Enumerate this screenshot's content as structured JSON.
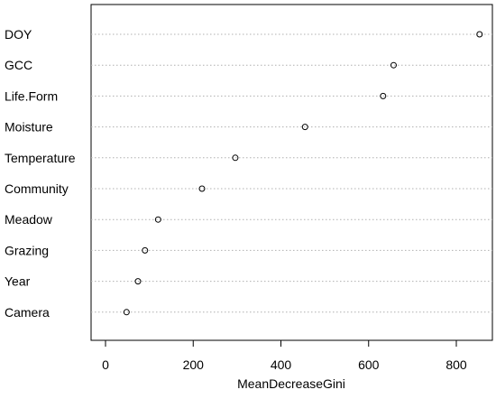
{
  "chart_data": {
    "type": "scatter",
    "subtype": "dotchart",
    "title": "",
    "xlabel": "MeanDecreaseGini",
    "ylabel": "",
    "xlim": [
      -30,
      875
    ],
    "xticks": [
      0,
      200,
      400,
      600,
      800
    ],
    "grid": "dotted horizontal lines per variable",
    "categories": [
      "DOY",
      "GCC",
      "Life.Form",
      "Moisture",
      "Temperature",
      "Community",
      "Meadow",
      "Grazing",
      "Year",
      "Camera"
    ],
    "values": [
      853,
      657,
      633,
      455,
      296,
      220,
      120,
      90,
      74,
      48
    ],
    "colors": {
      "points": "#000000",
      "gridlines": "#b0b0b0",
      "axes": "#000000"
    }
  }
}
